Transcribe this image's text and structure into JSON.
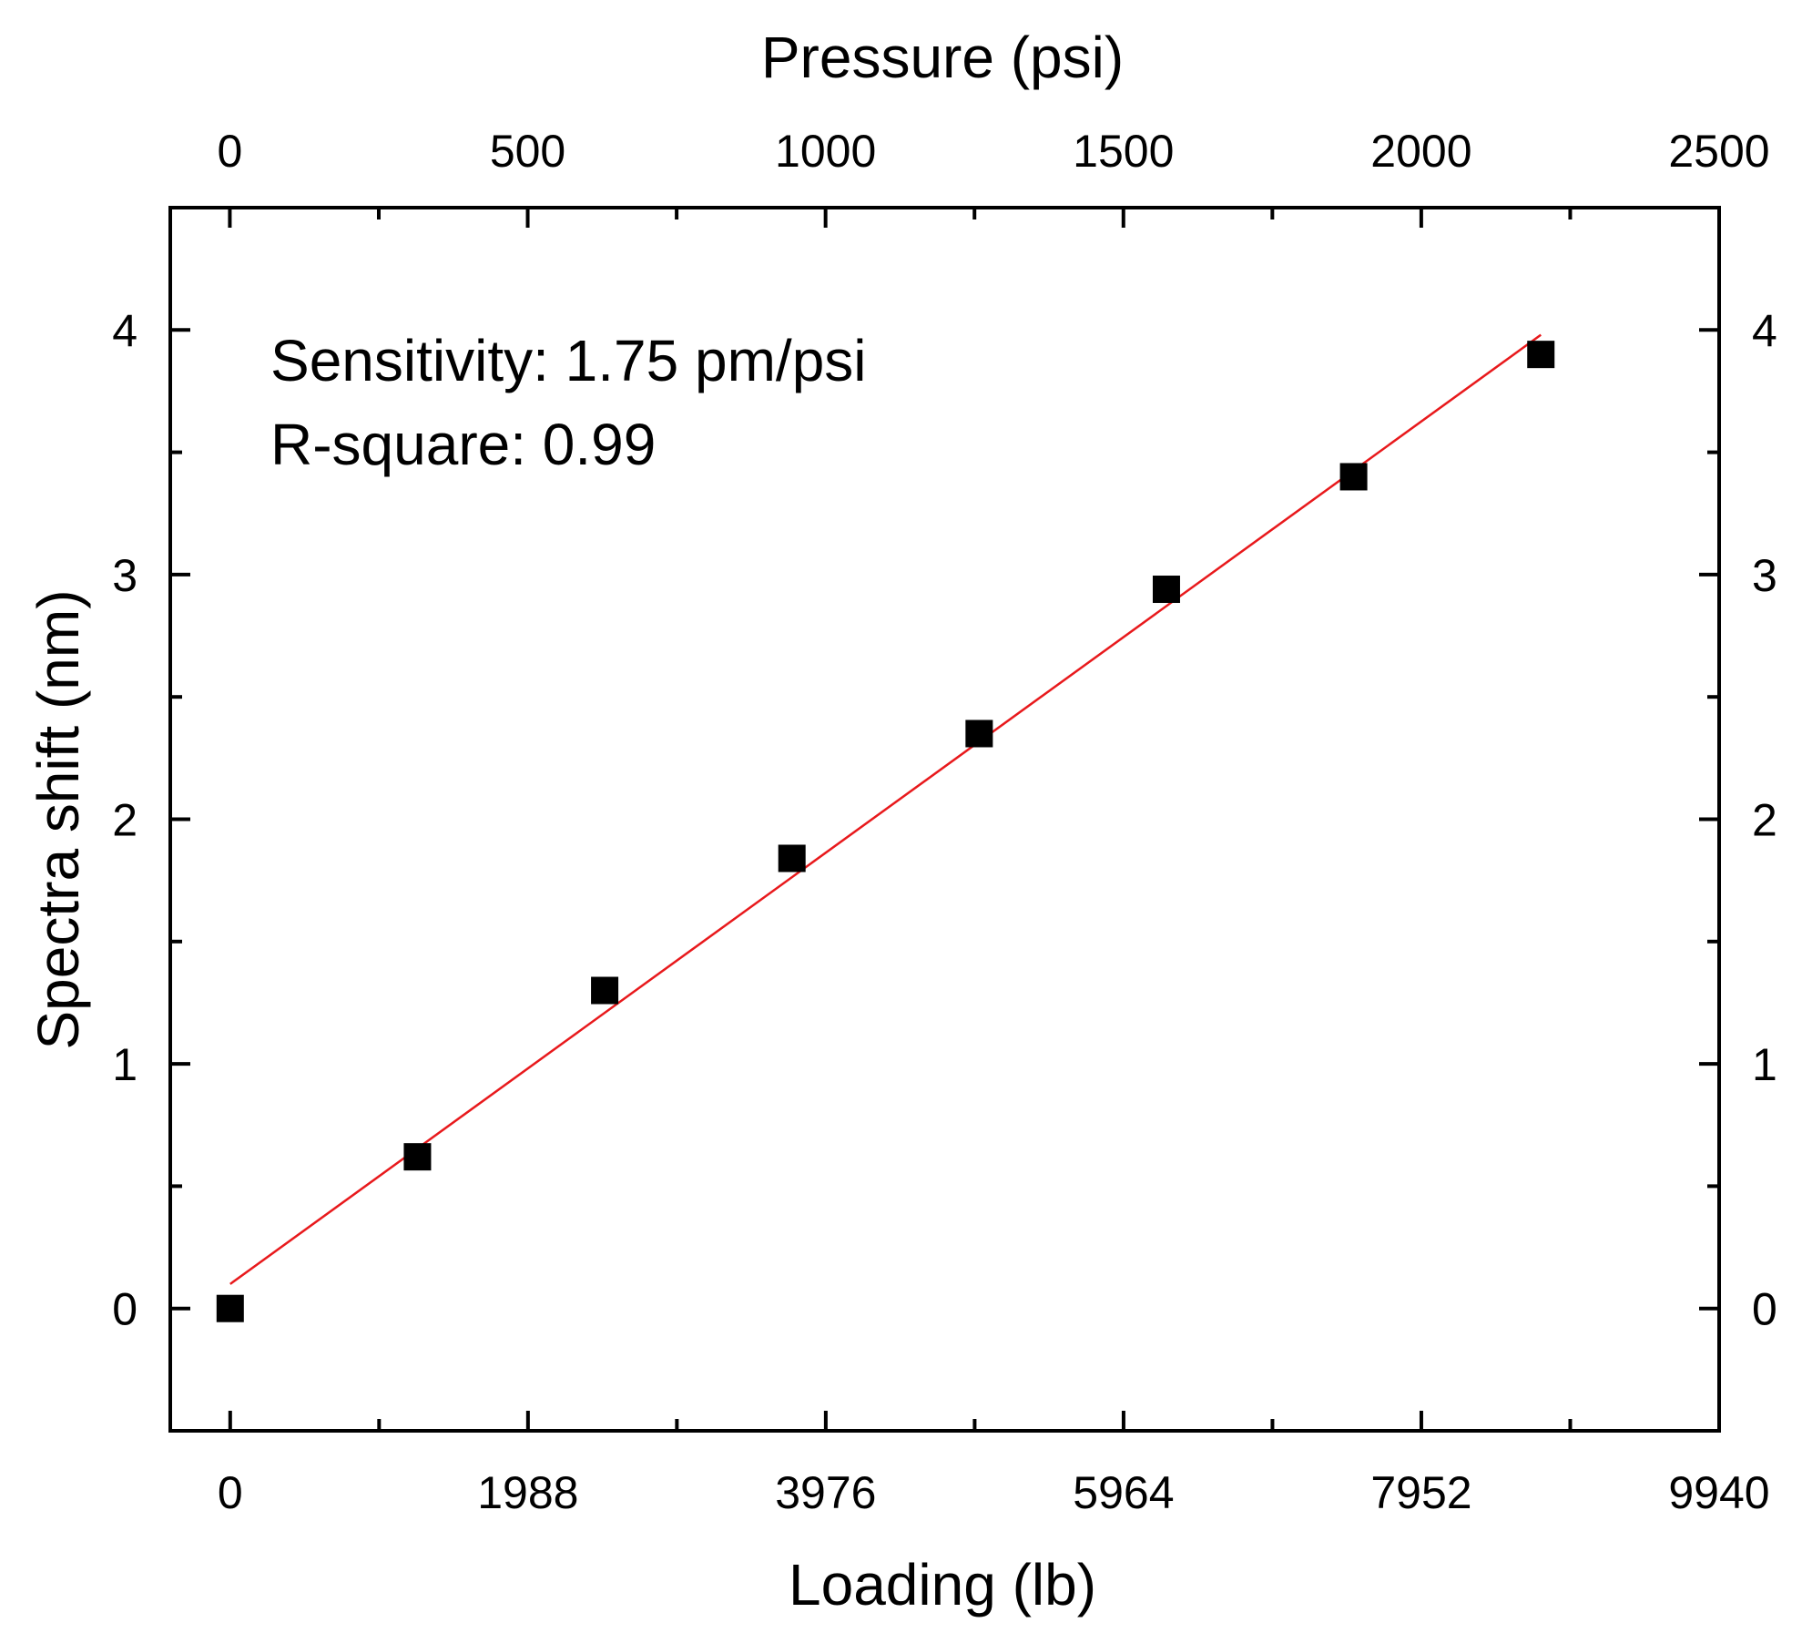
{
  "chart_data": {
    "type": "scatter",
    "xlabel": "Loading (lb)",
    "x2label": "Pressure (psi)",
    "ylabel": "Spectra shift (nm)",
    "xlim": [
      -400,
      9940
    ],
    "ylim": [
      -0.5,
      4.5
    ],
    "x2lim": [
      -100,
      2500
    ],
    "xticks": [
      "0",
      "1988",
      "3976",
      "5964",
      "7952",
      "9940"
    ],
    "x2ticks": [
      "0",
      "500",
      "1000",
      "1500",
      "2000",
      "2500"
    ],
    "yticks": [
      "0",
      "1",
      "2",
      "3",
      "4"
    ],
    "grid": false,
    "series": [
      {
        "marker": "square",
        "color": "#000000",
        "x": [
          0,
          1250,
          2500,
          3750,
          5000,
          6250,
          7500,
          8750
        ],
        "y": [
          0,
          0.62,
          1.3,
          1.84,
          2.35,
          2.94,
          3.4,
          3.9
        ]
      }
    ],
    "fit": {
      "color": "#e8191c",
      "x": [
        0,
        8750
      ],
      "y": [
        0.1,
        3.98
      ]
    },
    "annotations": [
      "Sensitivity: 1.75 pm/psi",
      "R-square: 0.99"
    ]
  }
}
